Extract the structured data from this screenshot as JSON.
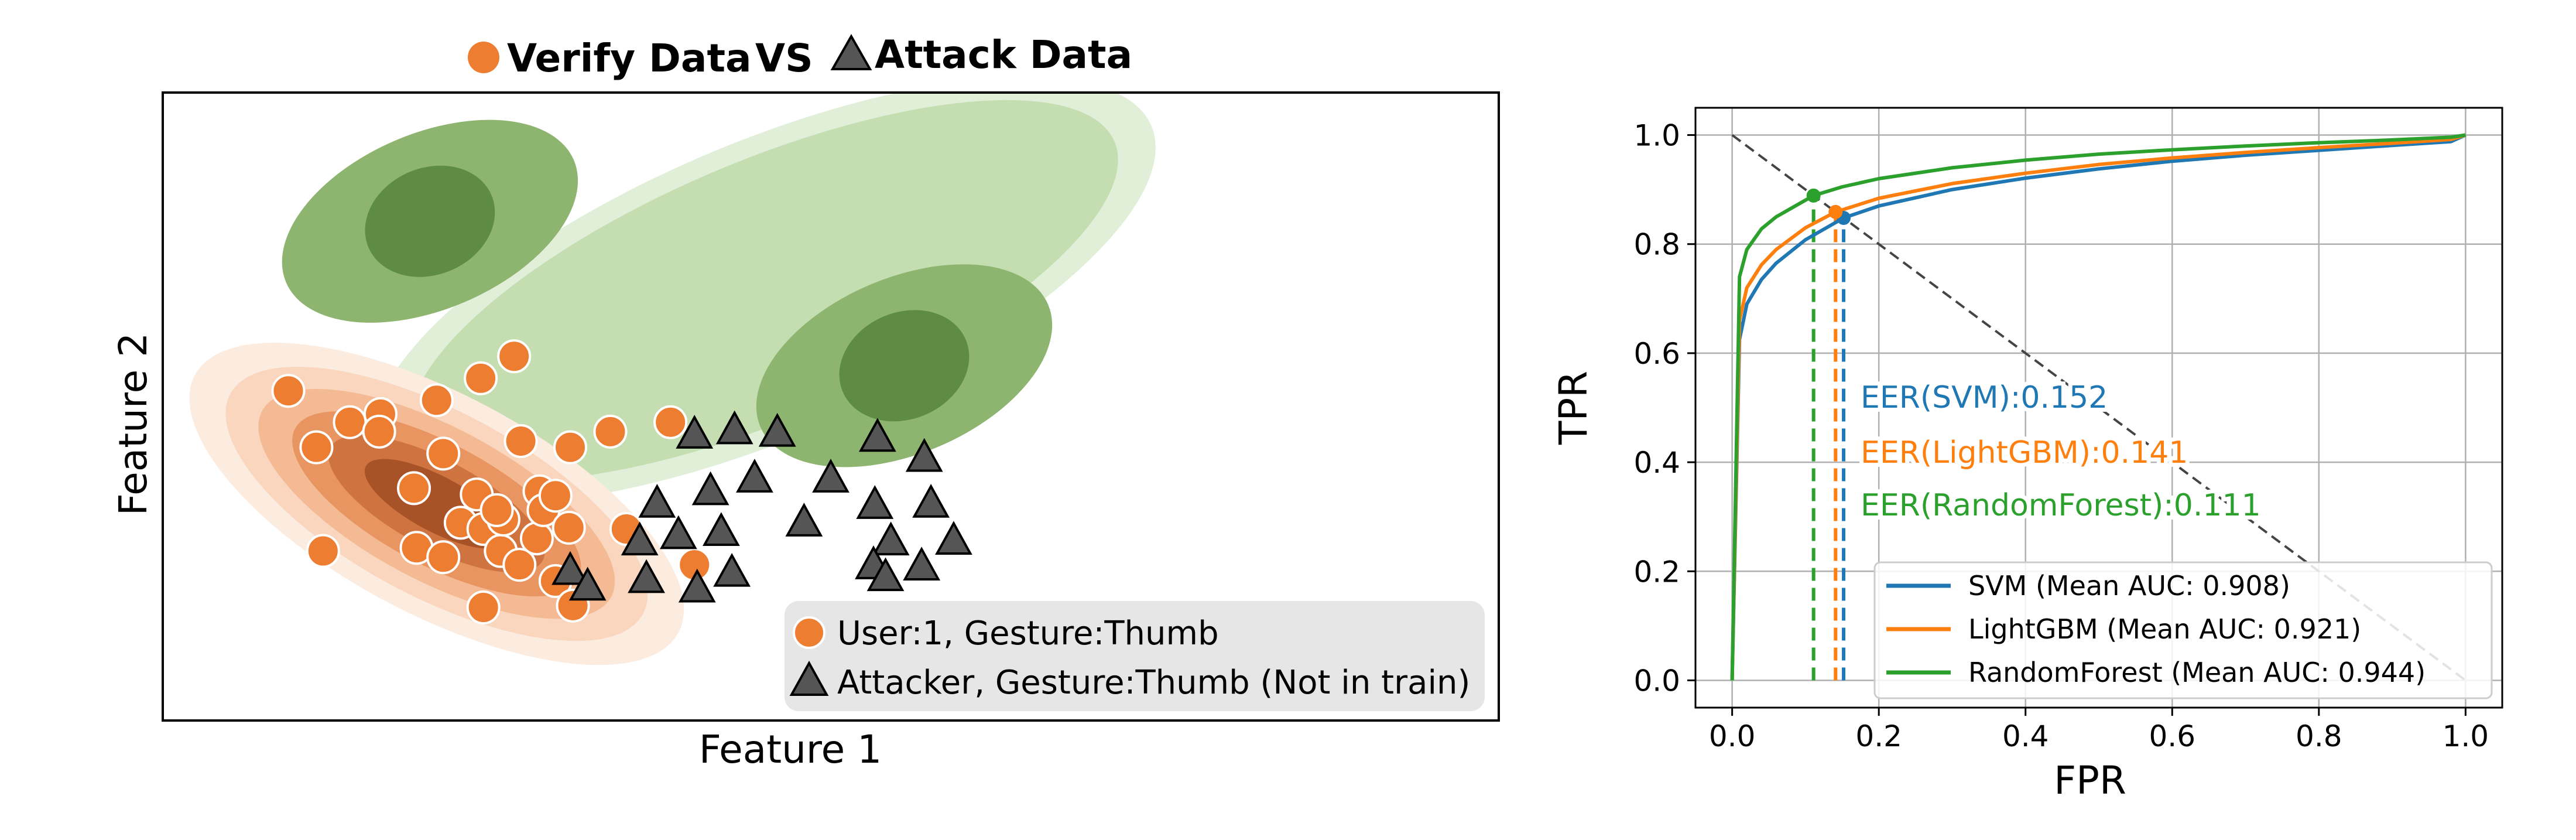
{
  "colors": {
    "verify": "#ED7D31",
    "attacker": "#555555",
    "svm": "#1F77B4",
    "lightgbm": "#FF7F0E",
    "randomforest": "#2CA02C",
    "legend_bg": "#E6E6E6",
    "grid": "#B0B0B0"
  },
  "chart_data": [
    {
      "type": "scatter",
      "title_parts": [
        "Verify Data",
        "VS",
        "Attack Data"
      ],
      "xlabel": "Feature 1",
      "ylabel": "Feature 2",
      "xlim": [
        0,
        1
      ],
      "ylim": [
        0,
        1
      ],
      "axis_ticks": false,
      "legend": {
        "placement": "bottom-right",
        "entries": [
          "User:1, Gesture:Thumb",
          "Attacker, Gesture:Thumb (Not in train)"
        ]
      },
      "density": {
        "verify": {
          "centers": [
            [
              0.205,
              0.345
            ]
          ],
          "levels": [
            {
              "rx": 0.205,
              "ry": 0.175
            },
            {
              "rx": 0.175,
              "ry": 0.148
            },
            {
              "rx": 0.148,
              "ry": 0.122
            },
            {
              "rx": 0.12,
              "ry": 0.097
            },
            {
              "rx": 0.09,
              "ry": 0.07
            },
            {
              "rx": 0.06,
              "ry": 0.044
            }
          ]
        },
        "attack": {
          "centers": [
            [
              0.2,
              0.795
            ],
            [
              0.555,
              0.565
            ]
          ],
          "outer_center": [
            0.45,
            0.685
          ],
          "outer_levels": [
            {
              "rx": 0.315,
              "ry": 0.235
            },
            {
              "rx": 0.285,
              "ry": 0.205
            }
          ],
          "inner_levels": [
            {
              "rx": 0.117,
              "ry": 0.14
            },
            {
              "rx": 0.05,
              "ry": 0.085
            }
          ],
          "angle_deg": -23
        }
      },
      "series": [
        {
          "name": "User:1, Gesture:Thumb",
          "marker": "circle",
          "points": [
            [
              0.094,
              0.525
            ],
            [
              0.115,
              0.435
            ],
            [
              0.163,
              0.488
            ],
            [
              0.188,
              0.37
            ],
            [
              0.21,
              0.425
            ],
            [
              0.19,
              0.275
            ],
            [
              0.223,
              0.315
            ],
            [
              0.24,
              0.305
            ],
            [
              0.253,
              0.27
            ],
            [
              0.255,
              0.32
            ],
            [
              0.267,
              0.248
            ],
            [
              0.28,
              0.29
            ],
            [
              0.282,
              0.365
            ],
            [
              0.285,
              0.335
            ],
            [
              0.294,
              0.358
            ],
            [
              0.304,
              0.307
            ],
            [
              0.294,
              0.222
            ],
            [
              0.307,
              0.183
            ],
            [
              0.235,
              0.36
            ],
            [
              0.21,
              0.26
            ],
            [
              0.24,
              0.18
            ],
            [
              0.25,
              0.335
            ],
            [
              0.14,
              0.475
            ],
            [
              0.162,
              0.46
            ],
            [
              0.268,
              0.445
            ],
            [
              0.263,
              0.58
            ],
            [
              0.238,
              0.545
            ],
            [
              0.305,
              0.435
            ],
            [
              0.347,
              0.305
            ],
            [
              0.398,
              0.248
            ],
            [
              0.38,
              0.475
            ],
            [
              0.335,
              0.46
            ],
            [
              0.205,
              0.51
            ],
            [
              0.12,
              0.27
            ]
          ]
        },
        {
          "name": "Attacker, Gesture:Thumb (Not in train)",
          "marker": "triangle",
          "points": [
            [
              0.398,
              0.455
            ],
            [
              0.428,
              0.462
            ],
            [
              0.46,
              0.458
            ],
            [
              0.535,
              0.45
            ],
            [
              0.57,
              0.418
            ],
            [
              0.37,
              0.345
            ],
            [
              0.41,
              0.365
            ],
            [
              0.443,
              0.385
            ],
            [
              0.48,
              0.315
            ],
            [
              0.5,
              0.385
            ],
            [
              0.533,
              0.343
            ],
            [
              0.545,
              0.285
            ],
            [
              0.575,
              0.345
            ],
            [
              0.357,
              0.285
            ],
            [
              0.386,
              0.295
            ],
            [
              0.418,
              0.3
            ],
            [
              0.362,
              0.225
            ],
            [
              0.4,
              0.21
            ],
            [
              0.426,
              0.235
            ],
            [
              0.305,
              0.238
            ],
            [
              0.318,
              0.213
            ],
            [
              0.532,
              0.247
            ],
            [
              0.568,
              0.245
            ],
            [
              0.592,
              0.286
            ],
            [
              0.541,
              0.228
            ]
          ]
        }
      ]
    },
    {
      "type": "line",
      "xlabel": "FPR",
      "ylabel": "TPR",
      "xlim": [
        -0.05,
        1.05
      ],
      "ylim": [
        -0.05,
        1.05
      ],
      "xticks": [
        0.0,
        0.2,
        0.4,
        0.6,
        0.8,
        1.0
      ],
      "yticks": [
        0.0,
        0.2,
        0.4,
        0.6,
        0.8,
        1.0
      ],
      "tick_labels": [
        "0.0",
        "0.2",
        "0.4",
        "0.6",
        "0.8",
        "1.0"
      ],
      "grid": true,
      "legend": {
        "placement": "lower-right",
        "entries": [
          "SVM (Mean AUC: 0.908)",
          "LightGBM (Mean AUC: 0.921)",
          "RandomForest (Mean AUC: 0.944)"
        ]
      },
      "annotations": [
        "EER(SVM):0.152",
        "EER(LightGBM):0.141",
        "EER(RandomForest):0.111"
      ],
      "diagonal": {
        "x": [
          0,
          1
        ],
        "y": [
          1,
          0
        ]
      },
      "series": [
        {
          "name": "SVM",
          "eer": 0.152,
          "x": [
            0,
            0.01,
            0.02,
            0.04,
            0.06,
            0.1,
            0.152,
            0.2,
            0.3,
            0.4,
            0.5,
            0.6,
            0.7,
            0.8,
            0.9,
            0.98,
            1.0
          ],
          "y": [
            0,
            0.625,
            0.69,
            0.735,
            0.765,
            0.808,
            0.848,
            0.87,
            0.9,
            0.921,
            0.938,
            0.952,
            0.963,
            0.972,
            0.981,
            0.988,
            1.0
          ]
        },
        {
          "name": "LightGBM",
          "eer": 0.141,
          "x": [
            0,
            0.01,
            0.02,
            0.04,
            0.06,
            0.1,
            0.141,
            0.2,
            0.3,
            0.4,
            0.5,
            0.6,
            0.7,
            0.8,
            0.9,
            0.98,
            1.0
          ],
          "y": [
            0,
            0.66,
            0.72,
            0.762,
            0.79,
            0.83,
            0.859,
            0.884,
            0.911,
            0.93,
            0.946,
            0.958,
            0.968,
            0.977,
            0.985,
            0.992,
            1.0
          ]
        },
        {
          "name": "RandomForest",
          "eer": 0.111,
          "x": [
            0,
            0.01,
            0.02,
            0.04,
            0.06,
            0.111,
            0.15,
            0.2,
            0.3,
            0.4,
            0.5,
            0.6,
            0.7,
            0.8,
            0.9,
            0.98,
            1.0
          ],
          "y": [
            0,
            0.74,
            0.79,
            0.828,
            0.85,
            0.889,
            0.905,
            0.92,
            0.94,
            0.954,
            0.965,
            0.973,
            0.98,
            0.986,
            0.991,
            0.996,
            1.0
          ]
        }
      ]
    }
  ]
}
